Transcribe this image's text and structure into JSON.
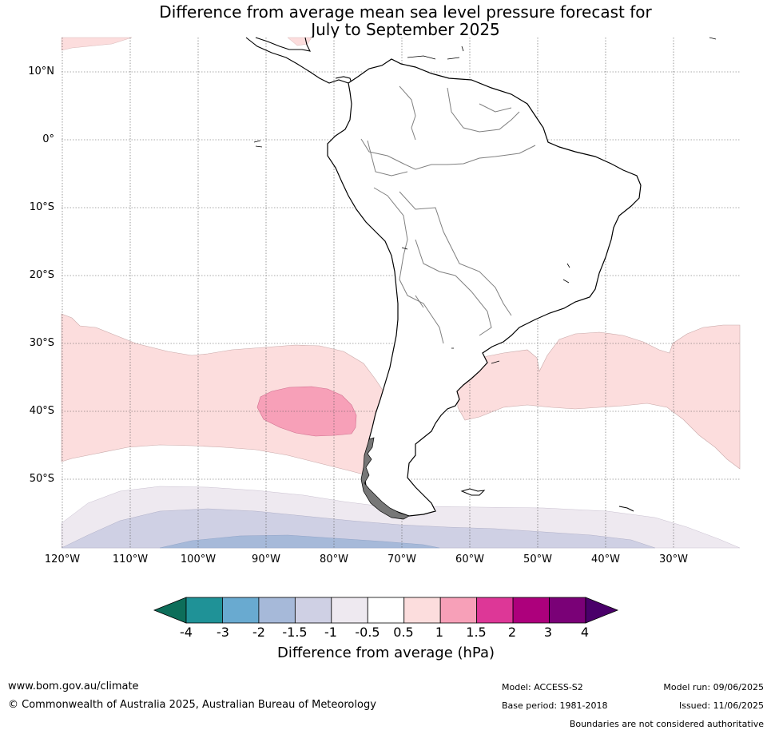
{
  "title_line1": "Difference from average mean sea level pressure forecast for",
  "title_line2": "July to September 2025",
  "latitude_labels": [
    "10°N",
    "0°",
    "10°S",
    "20°S",
    "30°S",
    "40°S",
    "50°S"
  ],
  "longitude_labels": [
    "120°W",
    "110°W",
    "100°W",
    "90°W",
    "80°W",
    "70°W",
    "60°W",
    "50°W",
    "40°W",
    "30°W"
  ],
  "colorbar": {
    "title": "Difference from average (hPa)",
    "ticks": [
      "-4",
      "-3",
      "-2",
      "-1.5",
      "-1",
      "-0.5",
      "0.5",
      "1",
      "1.5",
      "2",
      "3",
      "4"
    ],
    "colors": [
      "#0d6e5a",
      "#1f9297",
      "#69aad0",
      "#a6b9d9",
      "#cfd0e4",
      "#eee9f0",
      "#ffffff",
      "#fcdddd",
      "#f7a0b8",
      "#dd3797",
      "#ad007c",
      "#7a0177",
      "#4a006a"
    ]
  },
  "footer": {
    "website": "www.bom.gov.au/climate",
    "copyright": "© Commonwealth of Australia 2025, Australian Bureau of Meteorology",
    "model": "Model: ACCESS-S2",
    "base_period": "Base period: 1981-2018",
    "model_run": "Model run: 09/06/2025",
    "issued": "Issued: 11/06/2025",
    "disclaimer": "Boundaries are not considered authoritative"
  }
}
